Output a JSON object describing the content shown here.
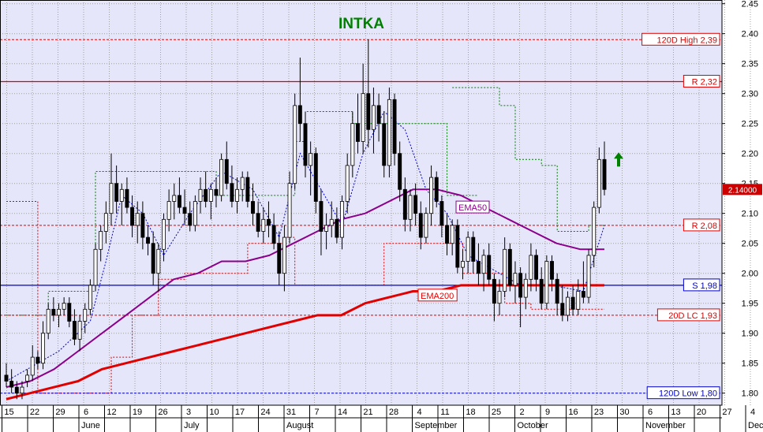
{
  "colors": {
    "plot_bg": "#e6e6fa",
    "grid": "#a0a0a0",
    "ema50": "#8b008b",
    "ema200": "#e00000",
    "resistance": "#e00000",
    "support": "#0000cc",
    "title": "#008000",
    "up_arrow": "#008000",
    "guide_green": "#008000",
    "guide_red": "#e00000",
    "guide_blue": "#0000cc",
    "last_price_bg": "#cc0000"
  },
  "chart_data": {
    "type": "candlestick",
    "title": "INTKA",
    "ylim": [
      1.78,
      2.45
    ],
    "y_ticks": [
      "2.45",
      "2.40",
      "2.35",
      "2.30",
      "2.25",
      "2.20",
      "2.15",
      "2.10",
      "2.05",
      "2.00",
      "1.95",
      "1.90",
      "1.85",
      "1.80"
    ],
    "y_tick_values": [
      2.45,
      2.4,
      2.35,
      2.3,
      2.25,
      2.2,
      2.15,
      2.1,
      2.05,
      2.0,
      1.95,
      1.9,
      1.85,
      1.8
    ],
    "x_axis": {
      "week_ticks": [
        "15",
        "22",
        "29",
        "6",
        "12",
        "19",
        "26",
        "3",
        "10",
        "17",
        "24",
        "31",
        "7",
        "14",
        "21",
        "28",
        "4",
        "11",
        "18",
        "25",
        "2",
        "9",
        "16",
        "23",
        "30",
        "6",
        "13",
        "20",
        "27",
        "4"
      ],
      "months": [
        "June",
        "July",
        "August",
        "September",
        "October",
        "November",
        "Dec"
      ],
      "month_start_week_index": [
        3,
        7,
        11,
        16,
        20,
        25,
        29
      ]
    },
    "last_price": "2.14000",
    "levels": [
      {
        "label": "120D High 2,39",
        "value": 2.39,
        "style": "dashed",
        "color": "resistance"
      },
      {
        "label": "R 2,32",
        "value": 2.32,
        "style": "solid",
        "color": "resistance"
      },
      {
        "label": "R 2,08",
        "value": 2.08,
        "style": "dashed",
        "color": "resistance"
      },
      {
        "label": "S 1,98",
        "value": 1.98,
        "style": "solid",
        "color": "support"
      },
      {
        "label": "20D LC 1,93",
        "value": 1.93,
        "style": "dashed",
        "color": "resistance"
      },
      {
        "label": "120D Low 1,80",
        "value": 1.8,
        "style": "dashed",
        "color": "support"
      }
    ],
    "series": [
      {
        "name": "EMA50",
        "values": [
          1.81,
          1.82,
          1.84,
          1.87,
          1.9,
          1.93,
          1.96,
          1.99,
          2.0,
          2.02,
          2.02,
          2.03,
          2.05,
          2.07,
          2.09,
          2.1,
          2.12,
          2.14,
          2.14,
          2.13,
          2.11,
          2.09,
          2.07,
          2.05,
          2.04,
          2.04
        ]
      },
      {
        "name": "EMA200",
        "values": [
          1.79,
          1.8,
          1.81,
          1.82,
          1.84,
          1.85,
          1.86,
          1.87,
          1.88,
          1.89,
          1.9,
          1.91,
          1.92,
          1.93,
          1.93,
          1.95,
          1.96,
          1.97,
          1.97,
          1.98,
          1.98,
          1.98,
          1.98,
          1.98,
          1.98,
          1.98
        ]
      }
    ],
    "ohlc": [
      [
        1.83,
        1.85,
        1.81,
        1.82
      ],
      [
        1.82,
        1.84,
        1.8,
        1.81
      ],
      [
        1.81,
        1.82,
        1.79,
        1.8
      ],
      [
        1.8,
        1.82,
        1.79,
        1.81
      ],
      [
        1.82,
        1.84,
        1.81,
        1.83
      ],
      [
        1.83,
        1.88,
        1.82,
        1.86
      ],
      [
        1.86,
        1.87,
        1.84,
        1.85
      ],
      [
        1.85,
        1.92,
        1.84,
        1.9
      ],
      [
        1.9,
        1.95,
        1.89,
        1.94
      ],
      [
        1.94,
        1.96,
        1.92,
        1.93
      ],
      [
        1.93,
        1.95,
        1.91,
        1.94
      ],
      [
        1.94,
        1.96,
        1.93,
        1.95
      ],
      [
        1.95,
        1.96,
        1.91,
        1.92
      ],
      [
        1.92,
        1.94,
        1.88,
        1.89
      ],
      [
        1.89,
        1.93,
        1.87,
        1.92
      ],
      [
        1.92,
        1.95,
        1.9,
        1.94
      ],
      [
        1.94,
        1.99,
        1.93,
        1.98
      ],
      [
        1.98,
        2.05,
        1.97,
        2.04
      ],
      [
        2.04,
        2.08,
        2.02,
        2.07
      ],
      [
        2.07,
        2.12,
        2.05,
        2.1
      ],
      [
        2.1,
        2.2,
        2.08,
        2.15
      ],
      [
        2.15,
        2.18,
        2.1,
        2.12
      ],
      [
        2.12,
        2.15,
        2.08,
        2.14
      ],
      [
        2.14,
        2.16,
        2.1,
        2.11
      ],
      [
        2.11,
        2.13,
        2.06,
        2.08
      ],
      [
        2.08,
        2.12,
        2.05,
        2.1
      ],
      [
        2.1,
        2.12,
        2.04,
        2.06
      ],
      [
        2.06,
        2.08,
        2.03,
        2.05
      ],
      [
        2.05,
        2.07,
        1.98,
        2.0
      ],
      [
        2.0,
        2.05,
        1.97,
        2.04
      ],
      [
        2.04,
        2.1,
        2.02,
        2.09
      ],
      [
        2.09,
        2.14,
        2.07,
        2.12
      ],
      [
        2.12,
        2.15,
        2.09,
        2.13
      ],
      [
        2.13,
        2.16,
        2.1,
        2.11
      ],
      [
        2.11,
        2.14,
        2.08,
        2.1
      ],
      [
        2.1,
        2.12,
        2.07,
        2.08
      ],
      [
        2.08,
        2.13,
        2.07,
        2.12
      ],
      [
        2.12,
        2.16,
        2.1,
        2.14
      ],
      [
        2.14,
        2.17,
        2.11,
        2.12
      ],
      [
        2.12,
        2.15,
        2.09,
        2.14
      ],
      [
        2.14,
        2.16,
        2.11,
        2.13
      ],
      [
        2.13,
        2.2,
        2.12,
        2.19
      ],
      [
        2.19,
        2.22,
        2.14,
        2.15
      ],
      [
        2.15,
        2.18,
        2.11,
        2.12
      ],
      [
        2.12,
        2.16,
        2.1,
        2.14
      ],
      [
        2.14,
        2.17,
        2.12,
        2.16
      ],
      [
        2.16,
        2.17,
        2.11,
        2.12
      ],
      [
        2.12,
        2.15,
        2.08,
        2.1
      ],
      [
        2.1,
        2.12,
        2.06,
        2.07
      ],
      [
        2.07,
        2.11,
        2.05,
        2.09
      ],
      [
        2.09,
        2.12,
        2.06,
        2.08
      ],
      [
        2.08,
        2.1,
        2.04,
        2.05
      ],
      [
        2.05,
        2.07,
        1.98,
        2.0
      ],
      [
        2.0,
        2.08,
        1.97,
        2.06
      ],
      [
        2.06,
        2.17,
        2.05,
        2.15
      ],
      [
        2.15,
        2.3,
        2.14,
        2.28
      ],
      [
        2.28,
        2.36,
        2.22,
        2.25
      ],
      [
        2.25,
        2.27,
        2.16,
        2.18
      ],
      [
        2.18,
        2.22,
        2.13,
        2.2
      ],
      [
        2.2,
        2.21,
        2.1,
        2.12
      ],
      [
        2.12,
        2.14,
        2.03,
        2.07
      ],
      [
        2.07,
        2.1,
        2.04,
        2.08
      ],
      [
        2.08,
        2.12,
        2.06,
        2.09
      ],
      [
        2.09,
        2.11,
        2.05,
        2.06
      ],
      [
        2.06,
        2.13,
        2.04,
        2.12
      ],
      [
        2.12,
        2.2,
        2.1,
        2.18
      ],
      [
        2.18,
        2.27,
        2.16,
        2.25
      ],
      [
        2.25,
        2.3,
        2.2,
        2.22
      ],
      [
        2.22,
        2.35,
        2.2,
        2.3
      ],
      [
        2.3,
        2.39,
        2.21,
        2.24
      ],
      [
        2.24,
        2.31,
        2.2,
        2.28
      ],
      [
        2.28,
        2.3,
        2.22,
        2.25
      ],
      [
        2.25,
        2.27,
        2.16,
        2.18
      ],
      [
        2.18,
        2.31,
        2.16,
        2.29
      ],
      [
        2.29,
        2.3,
        2.18,
        2.2
      ],
      [
        2.2,
        2.22,
        2.12,
        2.14
      ],
      [
        2.14,
        2.16,
        2.07,
        2.09
      ],
      [
        2.09,
        2.14,
        2.07,
        2.13
      ],
      [
        2.13,
        2.15,
        2.08,
        2.1
      ],
      [
        2.1,
        2.12,
        2.04,
        2.06
      ],
      [
        2.06,
        2.11,
        2.05,
        2.1
      ],
      [
        2.1,
        2.18,
        2.08,
        2.16
      ],
      [
        2.16,
        2.17,
        2.11,
        2.12
      ],
      [
        2.12,
        2.13,
        2.06,
        2.08
      ],
      [
        2.08,
        2.1,
        2.03,
        2.05
      ],
      [
        2.05,
        2.09,
        2.03,
        2.08
      ],
      [
        2.08,
        2.09,
        2.0,
        2.01
      ],
      [
        2.01,
        2.04,
        1.99,
        2.02
      ],
      [
        2.02,
        2.07,
        2.0,
        2.06
      ],
      [
        2.06,
        2.07,
        2.0,
        2.02
      ],
      [
        2.02,
        2.05,
        1.98,
        2.0
      ],
      [
        2.0,
        2.04,
        1.97,
        2.03
      ],
      [
        2.03,
        2.05,
        1.98,
        1.99
      ],
      [
        1.99,
        2.0,
        1.92,
        1.95
      ],
      [
        1.95,
        1.99,
        1.93,
        1.97
      ],
      [
        1.97,
        2.06,
        1.96,
        2.04
      ],
      [
        2.04,
        2.05,
        1.97,
        1.98
      ],
      [
        1.98,
        2.02,
        1.95,
        2.0
      ],
      [
        2.0,
        2.01,
        1.91,
        1.96
      ],
      [
        1.96,
        2.0,
        1.94,
        1.99
      ],
      [
        1.99,
        2.05,
        1.97,
        2.03
      ],
      [
        2.03,
        2.04,
        1.97,
        1.99
      ],
      [
        1.99,
        2.01,
        1.94,
        1.95
      ],
      [
        1.95,
        2.03,
        1.94,
        2.02
      ],
      [
        2.02,
        2.03,
        1.97,
        1.99
      ],
      [
        1.99,
        2.0,
        1.93,
        1.95
      ],
      [
        1.95,
        1.98,
        1.92,
        1.93
      ],
      [
        1.93,
        1.97,
        1.92,
        1.96
      ],
      [
        1.96,
        1.98,
        1.93,
        1.94
      ],
      [
        1.94,
        1.99,
        1.93,
        1.97
      ],
      [
        1.97,
        2.02,
        1.95,
        1.96
      ],
      [
        1.96,
        2.04,
        1.95,
        2.03
      ],
      [
        2.03,
        2.12,
        2.01,
        2.11
      ],
      [
        2.11,
        2.21,
        2.1,
        2.19
      ],
      [
        2.19,
        2.22,
        2.13,
        2.14
      ]
    ]
  }
}
